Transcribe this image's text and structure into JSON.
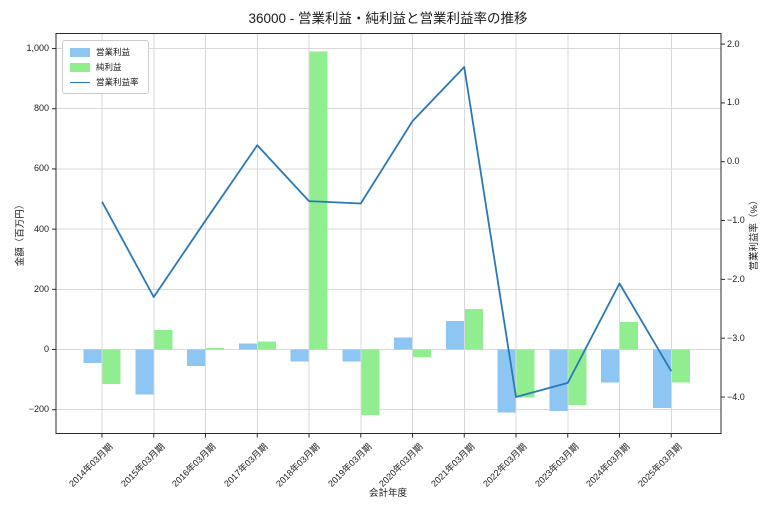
{
  "title": "36000 - 営業利益・純利益と営業利益率の推移",
  "chart_data": {
    "type": "bar+line combo",
    "title": "36000 - 営業利益・純利益と営業利益率の推移",
    "xlabel": "会計年度",
    "ylabel_left": "金額（百万円）",
    "ylabel_right": "営業利益率（%）",
    "grid": true,
    "legend_position": "upper left",
    "categories": [
      "2014年03月期",
      "2015年03月期",
      "2016年03月期",
      "2017年03月期",
      "2018年03月期",
      "2019年03月期",
      "2020年03月期",
      "2021年03月期",
      "2022年03月期",
      "2023年03月期",
      "2024年03月期",
      "2025年03月期"
    ],
    "series": [
      {
        "name": "営業利益",
        "key": "operating-income",
        "type": "bar",
        "axis": "left",
        "color": "#8DC6F2",
        "values": [
          -45,
          -150,
          -55,
          20,
          -40,
          -40,
          40,
          95,
          -210,
          -205,
          -110,
          -195
        ]
      },
      {
        "name": "純利益",
        "key": "net-income",
        "type": "bar",
        "axis": "left",
        "color": "#90EE90",
        "values": [
          -115,
          65,
          5,
          27,
          990,
          -218,
          -25,
          135,
          -160,
          -185,
          92,
          -110
        ]
      },
      {
        "name": "営業利益率",
        "key": "operating-margin",
        "type": "line",
        "axis": "right",
        "color": "#2979B8",
        "values": [
          -0.68,
          -2.3,
          -1.0,
          0.28,
          -0.67,
          -0.71,
          0.69,
          1.61,
          -4.0,
          -3.76,
          -2.07,
          -3.56
        ]
      }
    ],
    "left_axis": {
      "tick_values": [
        1000,
        800,
        600,
        400,
        200,
        0,
        -200
      ],
      "tick_labels": [
        "1,000",
        "800",
        "600",
        "400",
        "200",
        "0",
        "−200"
      ],
      "range": [
        -279,
        1050
      ]
    },
    "right_axis": {
      "tick_values": [
        2.0,
        1.0,
        0.0,
        -1.0,
        -2.0,
        -3.0,
        -4.0
      ],
      "tick_labels": [
        "2.0",
        "1.0",
        "0.0",
        "−1.0",
        "−2.0",
        "−3.0",
        "−4.0"
      ],
      "range": [
        -4.62,
        2.18
      ]
    },
    "colors": {
      "grid": "#d9d9d9",
      "plot_border": "#2b2b2b",
      "background": "#ffffff"
    }
  }
}
